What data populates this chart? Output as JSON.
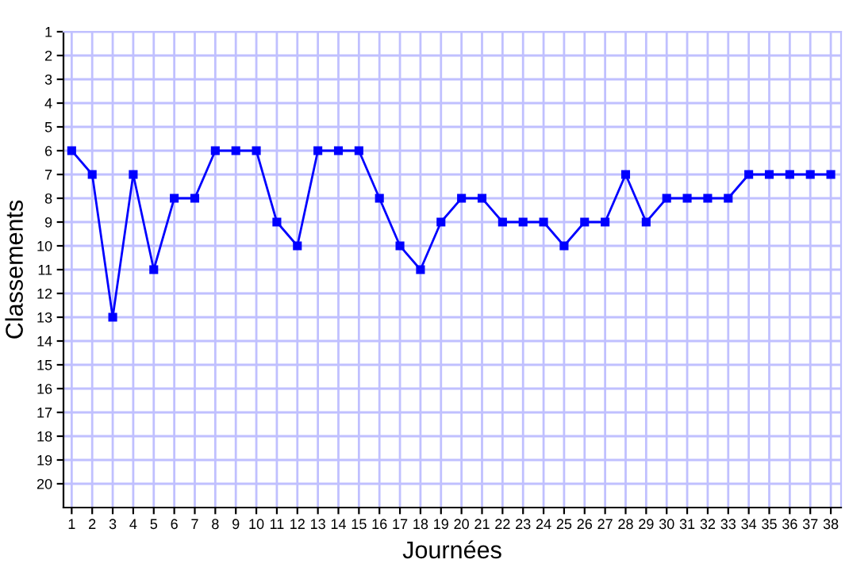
{
  "chart_data": {
    "type": "line",
    "xlabel": "Journées",
    "ylabel": "Classements",
    "x": [
      1,
      2,
      3,
      4,
      5,
      6,
      7,
      8,
      9,
      10,
      11,
      12,
      13,
      14,
      15,
      16,
      17,
      18,
      19,
      20,
      21,
      22,
      23,
      24,
      25,
      26,
      27,
      28,
      29,
      30,
      31,
      32,
      33,
      34,
      35,
      36,
      37,
      38
    ],
    "series": [
      {
        "color": "#0000ff",
        "values": [
          6,
          7,
          13,
          7,
          11,
          8,
          8,
          6,
          6,
          6,
          9,
          10,
          6,
          6,
          6,
          8,
          10,
          11,
          9,
          8,
          8,
          9,
          9,
          9,
          10,
          9,
          9,
          7,
          9,
          8,
          8,
          8,
          8,
          7,
          7,
          7,
          7,
          7
        ]
      }
    ],
    "xlim": [
      0.6,
      38.5
    ],
    "ylim": [
      21,
      1
    ],
    "xticks": [
      1,
      2,
      3,
      4,
      5,
      6,
      7,
      8,
      9,
      10,
      11,
      12,
      13,
      14,
      15,
      16,
      17,
      18,
      19,
      20,
      21,
      22,
      23,
      24,
      25,
      26,
      27,
      28,
      29,
      30,
      31,
      32,
      33,
      34,
      35,
      36,
      37,
      38
    ],
    "yticks": [
      1,
      2,
      3,
      4,
      5,
      6,
      7,
      8,
      9,
      10,
      11,
      12,
      13,
      14,
      15,
      16,
      17,
      18,
      19,
      20
    ],
    "grid": true,
    "marker": "square",
    "line_style": "solid",
    "legend": false
  }
}
